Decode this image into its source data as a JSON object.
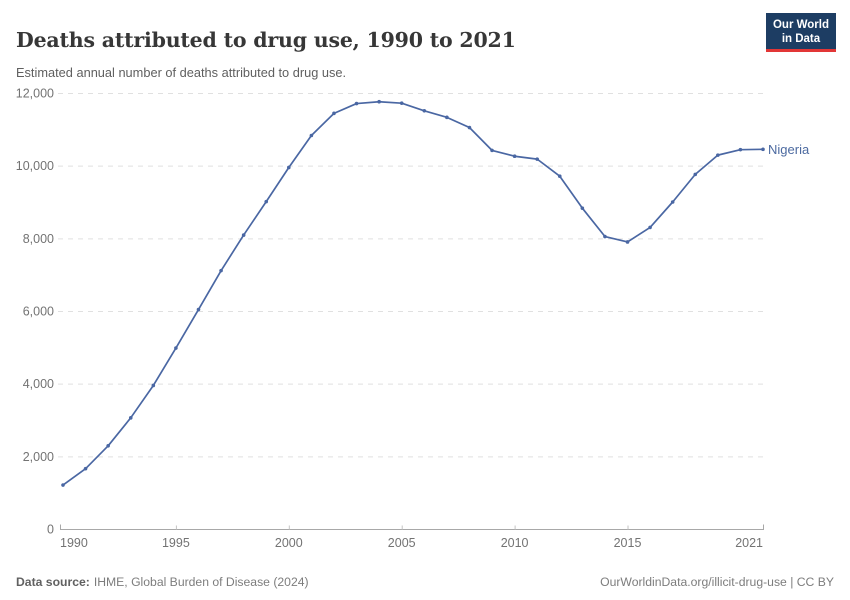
{
  "header": {
    "title": "Deaths attributed to drug use, 1990 to 2021",
    "subtitle": "Estimated annual number of deaths attributed to drug use."
  },
  "logo": {
    "line1": "Our World",
    "line2": "in Data",
    "bg_color": "#1d3d63",
    "accent_color": "#e23636"
  },
  "chart_data": {
    "type": "line",
    "title": "Deaths attributed to drug use, 1990 to 2021",
    "subtitle": "Estimated annual number of deaths attributed to drug use.",
    "xlabel": "",
    "ylabel": "",
    "xlim": [
      1990,
      2021
    ],
    "ylim": [
      0,
      12000
    ],
    "xticks": [
      1990,
      1995,
      2000,
      2005,
      2010,
      2015,
      2021
    ],
    "yticks": [
      0,
      2000,
      4000,
      6000,
      8000,
      10000,
      12000
    ],
    "grid": "horizontal-dashed",
    "legend": "end-of-line-label",
    "x": [
      1990,
      1991,
      1992,
      1993,
      1994,
      1995,
      1996,
      1997,
      1998,
      1999,
      2000,
      2001,
      2002,
      2003,
      2004,
      2005,
      2006,
      2007,
      2008,
      2009,
      2010,
      2011,
      2012,
      2013,
      2014,
      2015,
      2016,
      2017,
      2018,
      2019,
      2020,
      2021
    ],
    "series": [
      {
        "name": "Nigeria",
        "color": "#4a67a3",
        "label_color": "#4c6aa0",
        "values": [
          1210,
          1660,
          2290,
          3060,
          3950,
          4980,
          6040,
          7110,
          8090,
          9010,
          9950,
          10830,
          11440,
          11710,
          11760,
          11720,
          11510,
          11330,
          11050,
          10420,
          10260,
          10180,
          9710,
          8830,
          8050,
          7900,
          8300,
          9000,
          9760,
          10290,
          10440,
          10450
        ]
      }
    ],
    "axis_color": "#a8a8a8",
    "gridline_color": "#e0e0e0",
    "tick_label_color": "#737373"
  },
  "footer": {
    "source_label": "Data source:",
    "source_text": "IHME, Global Burden of Disease (2024)",
    "right_text": "OurWorldinData.org/illicit-drug-use | CC BY"
  }
}
